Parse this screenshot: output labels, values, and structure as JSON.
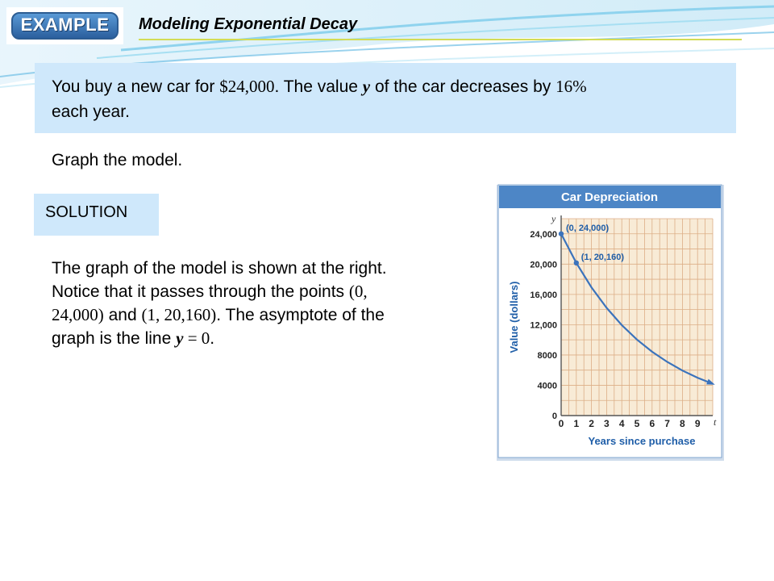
{
  "header": {
    "badge_label": "EXAMPLE",
    "title": "Modeling Exponential Decay"
  },
  "problem": {
    "part1": "You buy a new car for ",
    "price": "$24,000",
    "part2": ".  The value ",
    "var_y": "y",
    "part3": " of the car decreases by ",
    "rate": "16%",
    "part4": "each year."
  },
  "step_text": "Graph the model.",
  "solution_label": "SOLUTION",
  "explanation": {
    "part1": "The graph of the model is shown at the right.  Notice that it passes through the points ",
    "point1": "(0,  24,000)",
    "part2": " and ",
    "point2": "(1,  20,160)",
    "part3": ".  The asymptote of the graph is the line ",
    "eq_y": "y",
    "eq_rest": " = 0",
    "period": "."
  },
  "colors": {
    "chart_header": "#4d86c6",
    "grid_bg": "#f8ebd6",
    "grid_line": "#dcae86",
    "curve": "#3b73bc",
    "axis_title": "#1f5ea8"
  },
  "chart_data": {
    "type": "line",
    "title": "Car Depreciation",
    "xlabel": "Years since purchase",
    "ylabel": "Value (dollars)",
    "x_axis_var": "t",
    "y_axis_var": "y",
    "xlim": [
      0,
      10
    ],
    "ylim": [
      0,
      26000
    ],
    "x_ticks": [
      "0",
      "1",
      "2",
      "3",
      "4",
      "5",
      "6",
      "7",
      "8",
      "9"
    ],
    "y_ticks": [
      "0",
      "4000",
      "8000",
      "12,000",
      "16,000",
      "20,000",
      "24,000"
    ],
    "y_tick_values": [
      0,
      4000,
      8000,
      12000,
      16000,
      20000,
      24000
    ],
    "grid": true,
    "series": [
      {
        "x": [
          0,
          1,
          2,
          3,
          4,
          5,
          6,
          7,
          8,
          9,
          10
        ],
        "values": [
          24000,
          20160,
          16934,
          14225,
          11949,
          10037,
          8431,
          7082,
          5949,
          4997,
          4198
        ]
      }
    ],
    "points": [
      {
        "x": 0,
        "y": 24000,
        "label": "(0, 24,000)"
      },
      {
        "x": 1,
        "y": 20160,
        "label": "(1, 20,160)"
      }
    ]
  }
}
